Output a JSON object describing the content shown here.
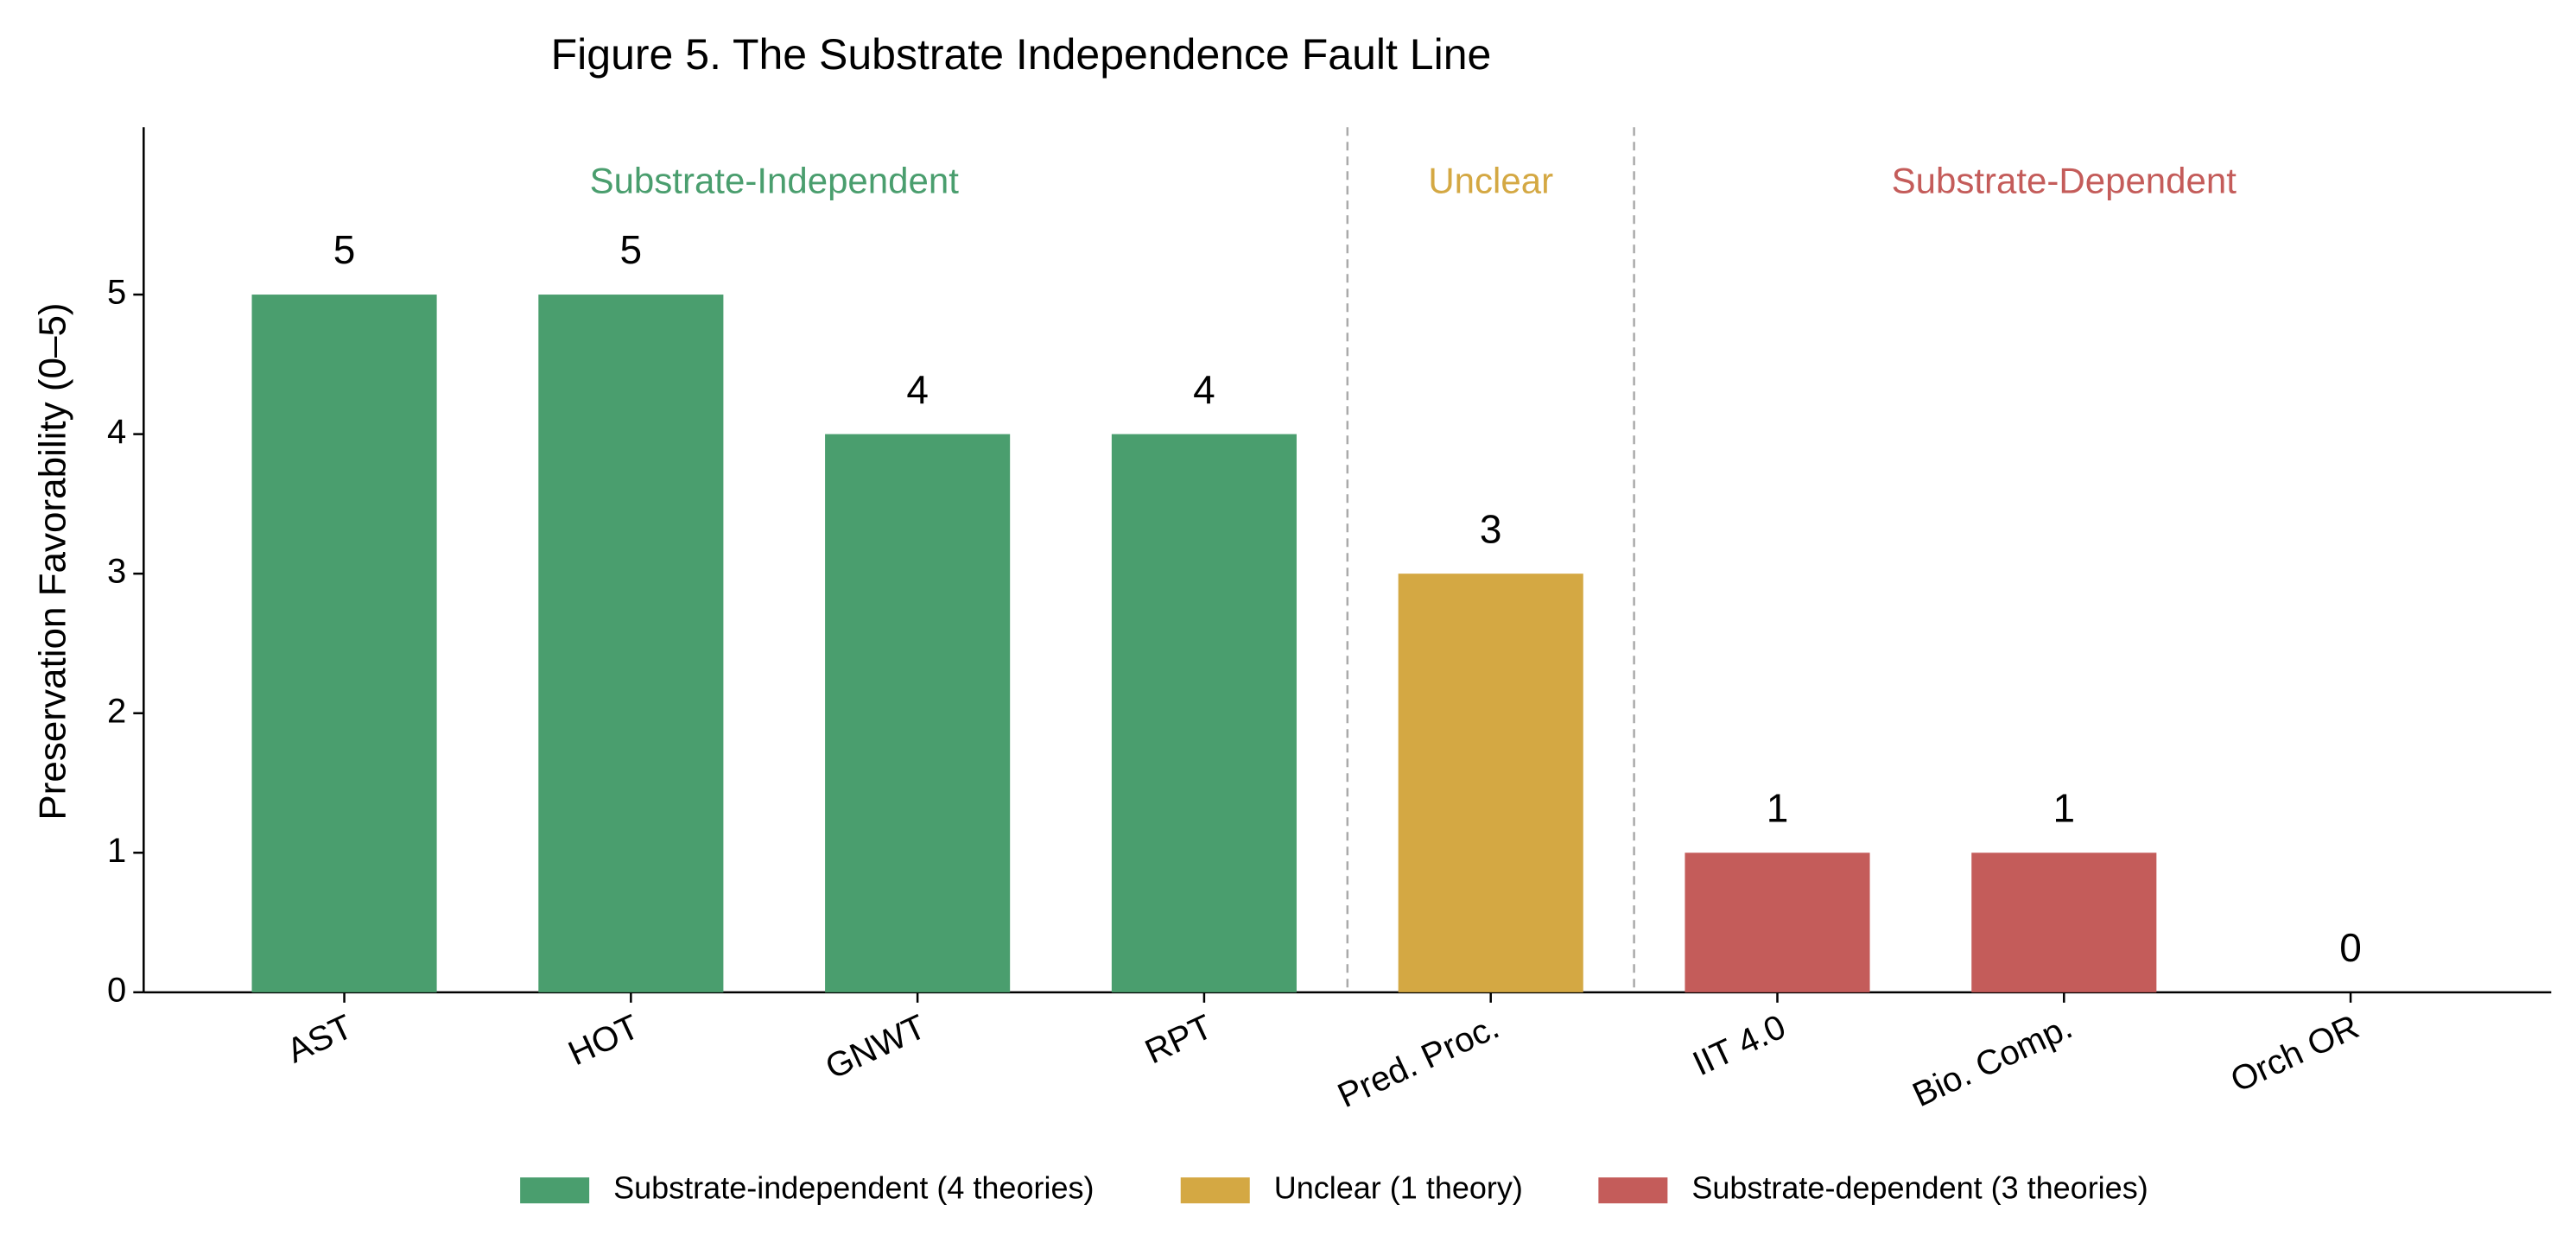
{
  "chart_data": {
    "type": "bar",
    "title": "Figure 5. The Substrate Independence Fault Line",
    "y_label": "Preservation Favorability (0–5)",
    "categories": [
      "AST",
      "HOT",
      "GNWT",
      "RPT",
      "Pred. Proc.",
      "IIT 4.0",
      "Bio. Comp.",
      "Orch OR"
    ],
    "series": [
      {
        "name": "Substrate-independent (4 theories)",
        "label": "Substrate-Independent",
        "color": "#4a9e6e",
        "values": [
          5,
          5,
          4,
          4,
          null,
          null,
          null,
          null
        ]
      },
      {
        "name": "Unclear (1 theory)",
        "label": "Unclear",
        "color": "#d4a843",
        "values": [
          null,
          null,
          null,
          null,
          3,
          null,
          null,
          null
        ]
      },
      {
        "name": "Substrate-dependent (3 theories)",
        "label": "Substrate-Dependent",
        "color": "#c45c5a",
        "values": [
          null,
          null,
          null,
          null,
          null,
          1,
          1,
          0
        ]
      }
    ],
    "ylim": [
      0,
      6.2
    ],
    "yticks": [
      0,
      1,
      2,
      3,
      4,
      5
    ],
    "grid": false
  }
}
